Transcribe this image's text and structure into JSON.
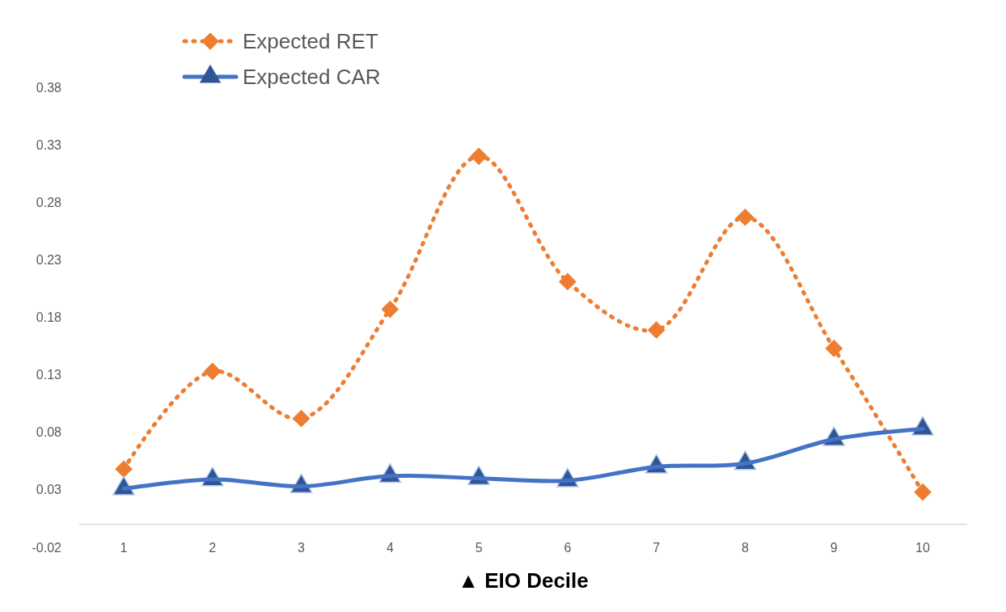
{
  "chart_data": {
    "type": "line",
    "xlabel": "▲ EIO Decile",
    "categories": [
      "1",
      "2",
      "3",
      "4",
      "5",
      "6",
      "7",
      "8",
      "9",
      "10"
    ],
    "series": [
      {
        "name": "Expected RET",
        "color": "#ed7d31",
        "marker": "diamond",
        "line_style": "dotted",
        "values": [
          0.048,
          0.133,
          0.092,
          0.187,
          0.32,
          0.211,
          0.169,
          0.267,
          0.153,
          0.028
        ]
      },
      {
        "name": "Expected CAR",
        "color": "#4472c4",
        "marker": "triangle",
        "line_style": "solid",
        "values": [
          0.031,
          0.039,
          0.033,
          0.042,
          0.04,
          0.038,
          0.05,
          0.053,
          0.074,
          0.083
        ]
      }
    ],
    "ylim": [
      -0.02,
      0.38
    ],
    "yticks": [
      -0.02,
      0.03,
      0.08,
      0.13,
      0.18,
      0.23,
      0.28,
      0.33,
      0.38
    ],
    "grid": false,
    "legend": "top left"
  }
}
